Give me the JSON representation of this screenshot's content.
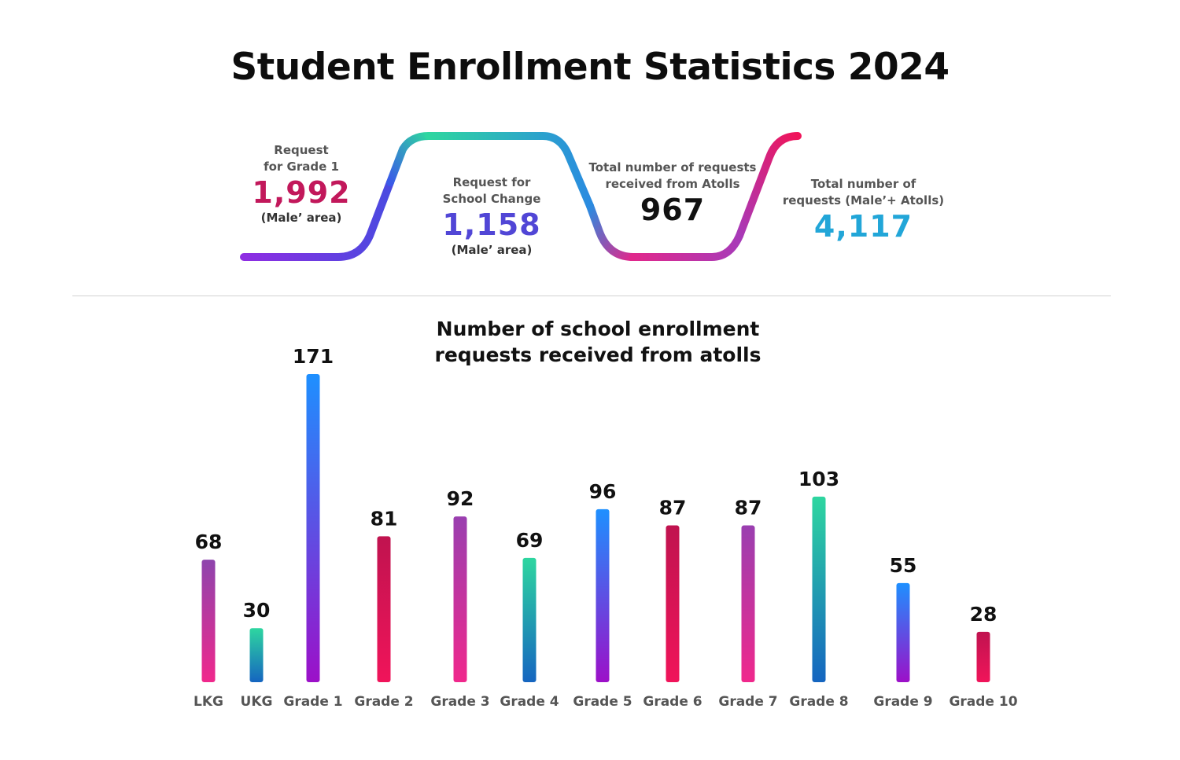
{
  "title": "Student Enrollment Statistics 2024",
  "stats": [
    {
      "label": "Request\nfor Grade 1",
      "value": "1,992",
      "note": "(Male’ area)",
      "color": "#c2185b"
    },
    {
      "label": "Request for\nSchool Change",
      "value": "1,158",
      "note": "(Male’ area)",
      "color": "#5146d6"
    },
    {
      "label": "Total number of requests\nreceived from Atolls",
      "value": "967",
      "note": "",
      "color": "#111111"
    },
    {
      "label": "Total number of\nrequests (Male’+ Atolls)",
      "value": "4,117",
      "note": "",
      "color": "#22a6d8"
    }
  ],
  "chart_data": {
    "type": "bar",
    "title": "Number of school enrollment\nrequests received from atolls",
    "categories": [
      "LKG",
      "UKG",
      "Grade 1",
      "Grade 2",
      "Grade 3",
      "Grade 4",
      "Grade 5",
      "Grade 6",
      "Grade 7",
      "Grade 8",
      "Grade 9",
      "Grade 10"
    ],
    "values": [
      68,
      30,
      171,
      81,
      92,
      69,
      96,
      87,
      87,
      103,
      55,
      28
    ],
    "gradients": [
      [
        "#8e44ad",
        "#f0288c"
      ],
      [
        "#2ed6a0",
        "#1565c0"
      ],
      [
        "#1e90ff",
        "#9c10c8"
      ],
      [
        "#c0134f",
        "#f0145a"
      ],
      [
        "#9a3fb0",
        "#f0288c"
      ],
      [
        "#2ed6a0",
        "#1565c0"
      ],
      [
        "#1e90ff",
        "#9c10c8"
      ],
      [
        "#c0134f",
        "#f0145a"
      ],
      [
        "#9a3fb0",
        "#f0288c"
      ],
      [
        "#2ed6a0",
        "#1565c0"
      ],
      [
        "#1e90ff",
        "#9c10c8"
      ],
      [
        "#c0134f",
        "#f0145a"
      ]
    ],
    "xlabel": "",
    "ylabel": "",
    "ylim": [
      0,
      171
    ],
    "grid": false,
    "legend": "none"
  }
}
